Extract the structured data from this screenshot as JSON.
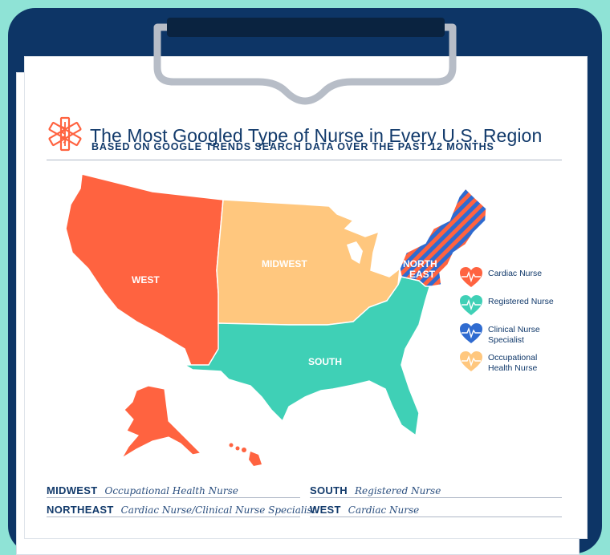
{
  "header": {
    "title": "The Most Googled Type of Nurse in Every U.S. Region",
    "subtitle": "BASED ON GOOGLE TRENDS SEARCH DATA OVER THE PAST 12 MONTHS"
  },
  "map": {
    "regions": [
      {
        "name": "WEST",
        "nurse_type": "Cardiac Nurse",
        "color": "#ff6340"
      },
      {
        "name": "MIDWEST",
        "nurse_type": "Occupational Health Nurse",
        "color": "#ffc77e"
      },
      {
        "name": "SOUTH",
        "nurse_type": "Registered Nurse",
        "color": "#3fd0b6"
      },
      {
        "name_line1": "NORTH",
        "name_line2": "EAST",
        "nurse_type": "Cardiac Nurse/Clinical Nurse Specialist",
        "colors": [
          "#ff6340",
          "#2f6bd0"
        ]
      }
    ]
  },
  "legend": [
    {
      "label": "Cardiac Nurse",
      "color": "#ff6340"
    },
    {
      "label": "Registered Nurse",
      "color": "#3fd0b6"
    },
    {
      "label": "Clinical Nurse Specialist",
      "color": "#2f6bd0"
    },
    {
      "label": "Occupational Health Nurse",
      "color": "#ffc77e"
    }
  ],
  "footer": {
    "midwest": {
      "region": "MIDWEST",
      "value": "Occupational Health Nurse"
    },
    "south": {
      "region": "SOUTH",
      "value": "Registered Nurse"
    },
    "northeast": {
      "region": "NORTHEAST",
      "value": "Cardiac Nurse/Clinical Nurse Specialist"
    },
    "west": {
      "region": "WEST",
      "value": "Cardiac Nurse"
    }
  },
  "theme": {
    "board": "#0d3566",
    "background": "#8fe3d6",
    "text": "#123a6b"
  },
  "icons": {
    "title_icon": "medical-star-of-life-icon",
    "legend_icon": "heart-pulse-icon",
    "clip_icon": "clipboard-clip-icon"
  }
}
